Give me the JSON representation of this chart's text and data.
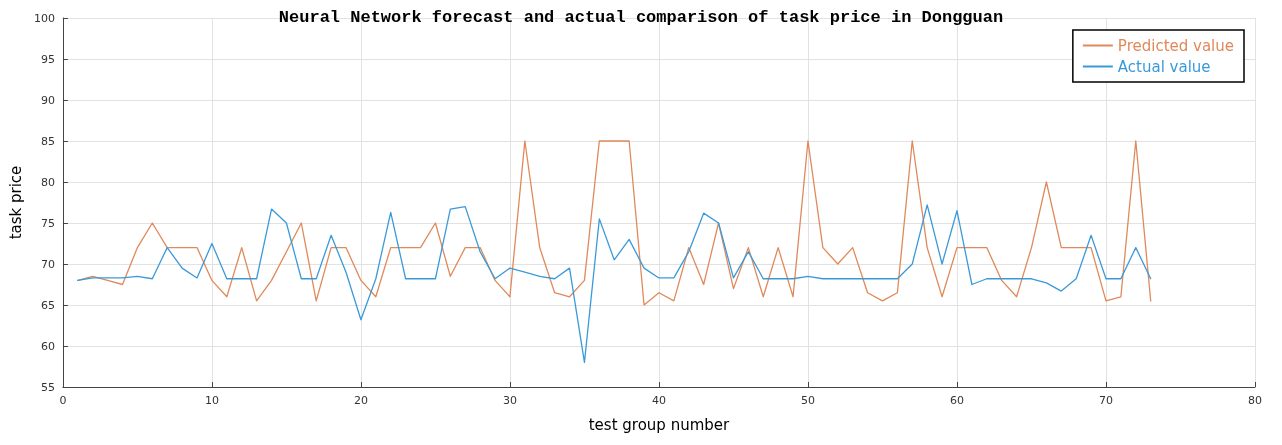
{
  "chart_data": {
    "type": "line",
    "title": "Neural Network forecast and actual comparison of task price in Dongguan",
    "xlabel": "test group number",
    "ylabel": "task price",
    "x": [
      1,
      2,
      3,
      4,
      5,
      6,
      7,
      8,
      9,
      10,
      11,
      12,
      13,
      14,
      15,
      16,
      17,
      18,
      19,
      20,
      21,
      22,
      23,
      24,
      25,
      26,
      27,
      28,
      29,
      30,
      31,
      32,
      33,
      34,
      35,
      36,
      37,
      38,
      39,
      40,
      41,
      42,
      43,
      44,
      45,
      46,
      47,
      48,
      49,
      50,
      51,
      52,
      53,
      54,
      55,
      56,
      57,
      58,
      59,
      60,
      61,
      62,
      63,
      64,
      65,
      66,
      67,
      68,
      69,
      70,
      71,
      72,
      73
    ],
    "series": [
      {
        "name": "Predicted value",
        "color": "#e0895a",
        "values": [
          68,
          68.5,
          68,
          67.5,
          72,
          75,
          72,
          72,
          72,
          68,
          66,
          72,
          65.5,
          68,
          71.5,
          75,
          65.5,
          72,
          72,
          68,
          66,
          72,
          72,
          72,
          75,
          68.5,
          72,
          72,
          68,
          66,
          85,
          72,
          66.5,
          66,
          68,
          85,
          85,
          85,
          65,
          66.5,
          65.5,
          72,
          67.5,
          75,
          67,
          72,
          66,
          72,
          66,
          85,
          72,
          70,
          72,
          66.5,
          65.5,
          66.5,
          85,
          72,
          66,
          72,
          72,
          72,
          68,
          66,
          72,
          80,
          72,
          72,
          72,
          65.5,
          66,
          85,
          65.5
        ]
      },
      {
        "name": "Actual value",
        "color": "#3a9ad9",
        "values": [
          68,
          68.3,
          68.3,
          68.3,
          68.5,
          68.2,
          72,
          69.5,
          68.3,
          72.5,
          68.2,
          68.2,
          68.2,
          76.7,
          75,
          68.2,
          68.2,
          73.5,
          69,
          63.2,
          68.2,
          76.3,
          68.2,
          68.2,
          68.2,
          76.7,
          77,
          71.5,
          68.2,
          69.5,
          69,
          68.5,
          68.2,
          69.5,
          58,
          75.5,
          70.5,
          73,
          69.5,
          68.3,
          68.3,
          71.5,
          76.2,
          75,
          68.3,
          71.5,
          68.2,
          68.2,
          68.2,
          68.5,
          68.2,
          68.2,
          68.2,
          68.2,
          68.2,
          68.2,
          70,
          77.2,
          70,
          76.5,
          67.5,
          68.2,
          68.2,
          68.2,
          68.2,
          67.7,
          66.7,
          68.2,
          73.5,
          68.2,
          68.2,
          72,
          68.2
        ]
      }
    ],
    "xlim": [
      0,
      80
    ],
    "xticks": [
      0,
      10,
      20,
      30,
      40,
      50,
      60,
      70,
      80
    ],
    "ylim": [
      55,
      100
    ],
    "yticks": [
      55,
      60,
      65,
      70,
      75,
      80,
      85,
      90,
      95,
      100
    ],
    "grid": true,
    "legend": "top right",
    "marker": "none",
    "line_style": "solid"
  }
}
